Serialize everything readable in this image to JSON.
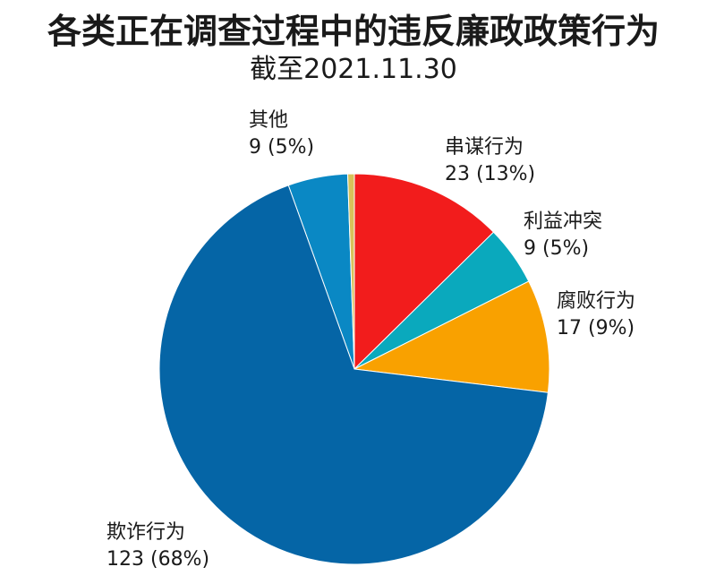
{
  "chart_data": {
    "type": "pie",
    "title": "各类正在调查过程中的违反廉政政策行为",
    "subtitle": "截至2021.11.30",
    "slices": [
      {
        "name": "其他",
        "value": 9,
        "percent_label": "9 (5%)",
        "color": "#0a88c4"
      },
      {
        "name": "",
        "value": 1,
        "percent_label": "",
        "color": "#d8c25a"
      },
      {
        "name": "串谋行为",
        "value": 23,
        "percent_label": "23 (13%)",
        "color": "#f21c1c"
      },
      {
        "name": "利益冲突",
        "value": 9,
        "percent_label": "9 (5%)",
        "color": "#0aa9bd"
      },
      {
        "name": "腐败行为",
        "value": 17,
        "percent_label": "17 (9%)",
        "color": "#f9a100"
      },
      {
        "name": "欺诈行为",
        "value": 123,
        "percent_label": "123 (68%)",
        "color": "#0565a6"
      }
    ]
  }
}
